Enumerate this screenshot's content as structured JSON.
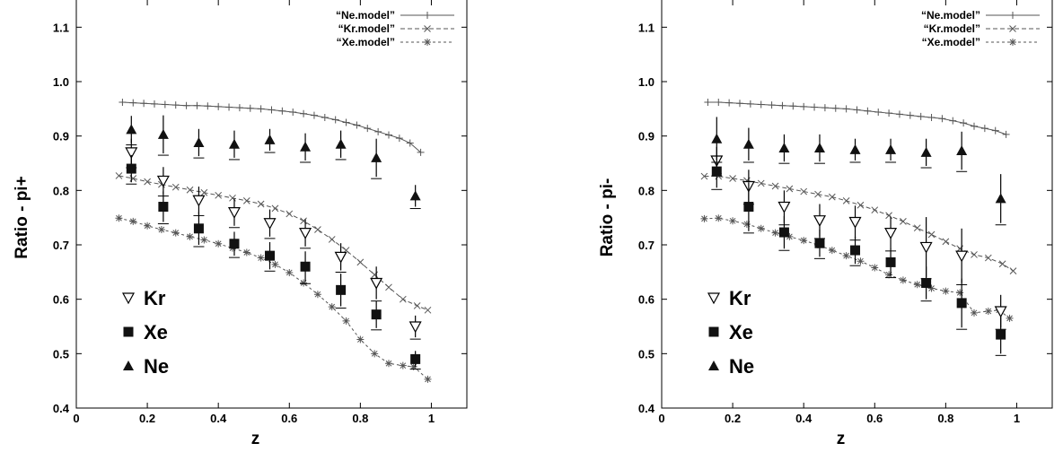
{
  "chart_data": [
    {
      "type": "scatter",
      "xlabel": "z",
      "ylabel": "Ratio - pi+",
      "xlim": [
        0,
        1.1
      ],
      "ylim": [
        0.4,
        1.15
      ],
      "x_ticks": [
        "0",
        "0.2",
        "0.4",
        "0.6",
        "0.8",
        "1"
      ],
      "y_ticks": [
        "0.4",
        "0.5",
        "0.6",
        "0.7",
        "0.8",
        "0.9",
        "1.0",
        "1.1"
      ],
      "models": [
        {
          "name": "“Ne.model”",
          "marker": "plus",
          "dash": "",
          "x": [
            0.13,
            0.16,
            0.19,
            0.22,
            0.25,
            0.28,
            0.31,
            0.34,
            0.37,
            0.4,
            0.43,
            0.46,
            0.49,
            0.52,
            0.55,
            0.58,
            0.61,
            0.64,
            0.67,
            0.7,
            0.73,
            0.76,
            0.79,
            0.82,
            0.85,
            0.88,
            0.91,
            0.94,
            0.97
          ],
          "y": [
            0.962,
            0.961,
            0.96,
            0.959,
            0.958,
            0.957,
            0.956,
            0.956,
            0.955,
            0.954,
            0.953,
            0.952,
            0.951,
            0.95,
            0.948,
            0.946,
            0.944,
            0.941,
            0.938,
            0.934,
            0.93,
            0.925,
            0.92,
            0.914,
            0.908,
            0.902,
            0.896,
            0.887,
            0.87
          ]
        },
        {
          "name": "“Kr.model”",
          "marker": "cross",
          "dash": "5,3",
          "x": [
            0.12,
            0.16,
            0.2,
            0.24,
            0.28,
            0.32,
            0.36,
            0.4,
            0.44,
            0.48,
            0.52,
            0.56,
            0.6,
            0.64,
            0.68,
            0.72,
            0.76,
            0.8,
            0.84,
            0.88,
            0.92,
            0.96,
            0.99
          ],
          "y": [
            0.827,
            0.822,
            0.816,
            0.811,
            0.806,
            0.801,
            0.796,
            0.791,
            0.786,
            0.781,
            0.775,
            0.767,
            0.757,
            0.744,
            0.728,
            0.71,
            0.69,
            0.668,
            0.645,
            0.622,
            0.6,
            0.588,
            0.58
          ]
        },
        {
          "name": "“Xe.model”",
          "marker": "star",
          "dash": "3,3",
          "x": [
            0.12,
            0.16,
            0.2,
            0.24,
            0.28,
            0.32,
            0.36,
            0.4,
            0.44,
            0.48,
            0.52,
            0.56,
            0.6,
            0.64,
            0.68,
            0.72,
            0.76,
            0.8,
            0.84,
            0.88,
            0.92,
            0.95,
            0.99
          ],
          "y": [
            0.749,
            0.743,
            0.735,
            0.728,
            0.722,
            0.715,
            0.709,
            0.702,
            0.694,
            0.686,
            0.676,
            0.664,
            0.649,
            0.63,
            0.609,
            0.586,
            0.56,
            0.526,
            0.5,
            0.482,
            0.478,
            0.476,
            0.453
          ]
        }
      ],
      "data_series": [
        {
          "name": "Kr",
          "marker": "triangle-down-open",
          "x": [
            0.155,
            0.245,
            0.345,
            0.445,
            0.545,
            0.645,
            0.745,
            0.845,
            0.955
          ],
          "y": [
            0.87,
            0.818,
            0.782,
            0.76,
            0.74,
            0.722,
            0.678,
            0.63,
            0.55
          ],
          "err": [
            0.025,
            0.025,
            0.025,
            0.025,
            0.025,
            0.025,
            0.025,
            0.03,
            0.02
          ]
        },
        {
          "name": "Xe",
          "marker": "square-filled",
          "x": [
            0.155,
            0.245,
            0.345,
            0.445,
            0.545,
            0.645,
            0.745,
            0.845,
            0.955
          ],
          "y": [
            0.84,
            0.77,
            0.73,
            0.702,
            0.68,
            0.66,
            0.617,
            0.572,
            0.49
          ],
          "err": [
            0.025,
            0.028,
            0.03,
            0.022,
            0.025,
            0.028,
            0.03,
            0.025,
            0.015
          ]
        },
        {
          "name": "Ne",
          "marker": "triangle-up-filled",
          "x": [
            0.155,
            0.245,
            0.345,
            0.445,
            0.545,
            0.645,
            0.745,
            0.845,
            0.955
          ],
          "y": [
            0.912,
            0.903,
            0.888,
            0.885,
            0.893,
            0.88,
            0.885,
            0.86,
            0.79
          ],
          "err": [
            0.025,
            0.035,
            0.025,
            0.025,
            0.02,
            0.025,
            0.025,
            0.035,
            0.02
          ]
        }
      ]
    },
    {
      "type": "scatter",
      "xlabel": "z",
      "ylabel": "Ratio - pi-",
      "xlim": [
        0,
        1.1
      ],
      "ylim": [
        0.4,
        1.15
      ],
      "x_ticks": [
        "0",
        "0.2",
        "0.4",
        "0.6",
        "0.8",
        "1"
      ],
      "y_ticks": [
        "0.4",
        "0.5",
        "0.6",
        "0.7",
        "0.8",
        "0.9",
        "1.0",
        "1.1"
      ],
      "models": [
        {
          "name": "“Ne.model”",
          "marker": "plus",
          "dash": "",
          "x": [
            0.13,
            0.16,
            0.19,
            0.22,
            0.25,
            0.28,
            0.31,
            0.34,
            0.37,
            0.4,
            0.43,
            0.46,
            0.49,
            0.52,
            0.55,
            0.58,
            0.61,
            0.64,
            0.67,
            0.7,
            0.73,
            0.76,
            0.79,
            0.82,
            0.85,
            0.88,
            0.91,
            0.94,
            0.97
          ],
          "y": [
            0.962,
            0.962,
            0.961,
            0.96,
            0.959,
            0.958,
            0.957,
            0.956,
            0.955,
            0.954,
            0.953,
            0.952,
            0.951,
            0.95,
            0.948,
            0.946,
            0.944,
            0.942,
            0.94,
            0.938,
            0.936,
            0.934,
            0.932,
            0.928,
            0.924,
            0.918,
            0.914,
            0.91,
            0.903
          ]
        },
        {
          "name": "“Kr.model”",
          "marker": "cross",
          "dash": "5,3",
          "x": [
            0.12,
            0.16,
            0.2,
            0.24,
            0.28,
            0.32,
            0.36,
            0.4,
            0.44,
            0.48,
            0.52,
            0.56,
            0.6,
            0.64,
            0.68,
            0.72,
            0.76,
            0.8,
            0.84,
            0.88,
            0.92,
            0.96,
            0.99
          ],
          "y": [
            0.826,
            0.826,
            0.822,
            0.818,
            0.813,
            0.808,
            0.803,
            0.798,
            0.793,
            0.788,
            0.781,
            0.773,
            0.764,
            0.754,
            0.743,
            0.731,
            0.719,
            0.706,
            0.693,
            0.682,
            0.676,
            0.665,
            0.652
          ]
        },
        {
          "name": "“Xe.model”",
          "marker": "star",
          "dash": "3,3",
          "x": [
            0.12,
            0.16,
            0.2,
            0.24,
            0.28,
            0.32,
            0.36,
            0.4,
            0.44,
            0.48,
            0.52,
            0.56,
            0.6,
            0.64,
            0.68,
            0.72,
            0.76,
            0.8,
            0.84,
            0.88,
            0.92,
            0.95,
            0.98
          ],
          "y": [
            0.748,
            0.749,
            0.744,
            0.738,
            0.73,
            0.722,
            0.715,
            0.708,
            0.7,
            0.69,
            0.68,
            0.67,
            0.658,
            0.645,
            0.635,
            0.627,
            0.62,
            0.615,
            0.612,
            0.575,
            0.578,
            0.58,
            0.565
          ]
        }
      ],
      "data_series": [
        {
          "name": "Kr",
          "marker": "triangle-down-open",
          "x": [
            0.155,
            0.245,
            0.345,
            0.445,
            0.545,
            0.645,
            0.745,
            0.845,
            0.955
          ],
          "y": [
            0.855,
            0.808,
            0.77,
            0.745,
            0.742,
            0.722,
            0.696,
            0.68,
            0.578
          ],
          "err": [
            0.025,
            0.03,
            0.03,
            0.03,
            0.03,
            0.03,
            0.055,
            0.05,
            0.03
          ]
        },
        {
          "name": "Xe",
          "marker": "square-filled",
          "x": [
            0.155,
            0.245,
            0.345,
            0.445,
            0.545,
            0.645,
            0.745,
            0.845,
            0.955
          ],
          "y": [
            0.835,
            0.77,
            0.723,
            0.703,
            0.69,
            0.668,
            0.63,
            0.593,
            0.535
          ],
          "err": [
            0.03,
            0.045,
            0.03,
            0.025,
            0.025,
            0.025,
            0.03,
            0.045,
            0.035
          ]
        },
        {
          "name": "Ne",
          "marker": "triangle-up-filled",
          "x": [
            0.155,
            0.245,
            0.345,
            0.445,
            0.545,
            0.645,
            0.745,
            0.845,
            0.955
          ],
          "y": [
            0.895,
            0.885,
            0.878,
            0.878,
            0.875,
            0.875,
            0.87,
            0.873,
            0.785
          ],
          "err": [
            0.04,
            0.03,
            0.025,
            0.025,
            0.02,
            0.02,
            0.025,
            0.035,
            0.045
          ]
        }
      ]
    }
  ]
}
